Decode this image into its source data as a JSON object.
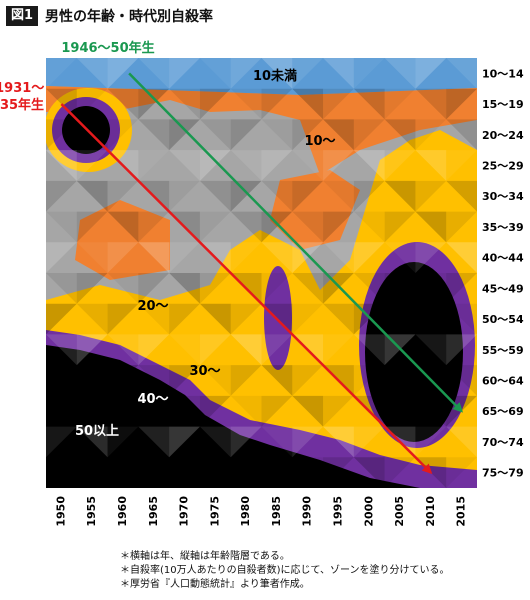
{
  "header": {
    "badge": "図1",
    "title": "男性の年齢・時代別自殺率"
  },
  "notes": [
    "＊横軸は年、縦軸は年齢階層である。",
    "＊自殺率(10万人あたりの自殺者数)に応じて、ゾーンを塗り分けている。",
    "＊厚労省『人口動態統計』より筆者作成。"
  ],
  "chart_data": {
    "type": "heatmap",
    "title": "男性の年齢・時代別自殺率",
    "x_ticks": [
      "1950",
      "1955",
      "1960",
      "1965",
      "1970",
      "1975",
      "1980",
      "1985",
      "1990",
      "1995",
      "2000",
      "2005",
      "2010",
      "2015"
    ],
    "y_ticks": [
      "10～14",
      "15～19",
      "20～24",
      "25～29",
      "30～34",
      "35～39",
      "40～44",
      "45～49",
      "50～54",
      "55～59",
      "60～64",
      "65～69",
      "70～74",
      "75～79"
    ],
    "zones": [
      {
        "label": "10未満",
        "color": "#5b9bd5"
      },
      {
        "label": "10～",
        "color": "#f08030"
      },
      {
        "label": "20～",
        "color": "#a6a6a6"
      },
      {
        "label": "30～",
        "color": "#ffc000"
      },
      {
        "label": "40～",
        "color": "#7030a0"
      },
      {
        "label": "50以上",
        "color": "#000000"
      }
    ],
    "cohorts": [
      {
        "label": "1946～50年生",
        "color": "#1a9850",
        "from": [
          "1961",
          "10～14"
        ],
        "to": [
          "2015",
          "65～69"
        ]
      },
      {
        "label": "1931～35年生",
        "color": "#e41a1c",
        "from": [
          "1950",
          "15～19"
        ],
        "to": [
          "2010",
          "75～79"
        ]
      }
    ]
  }
}
